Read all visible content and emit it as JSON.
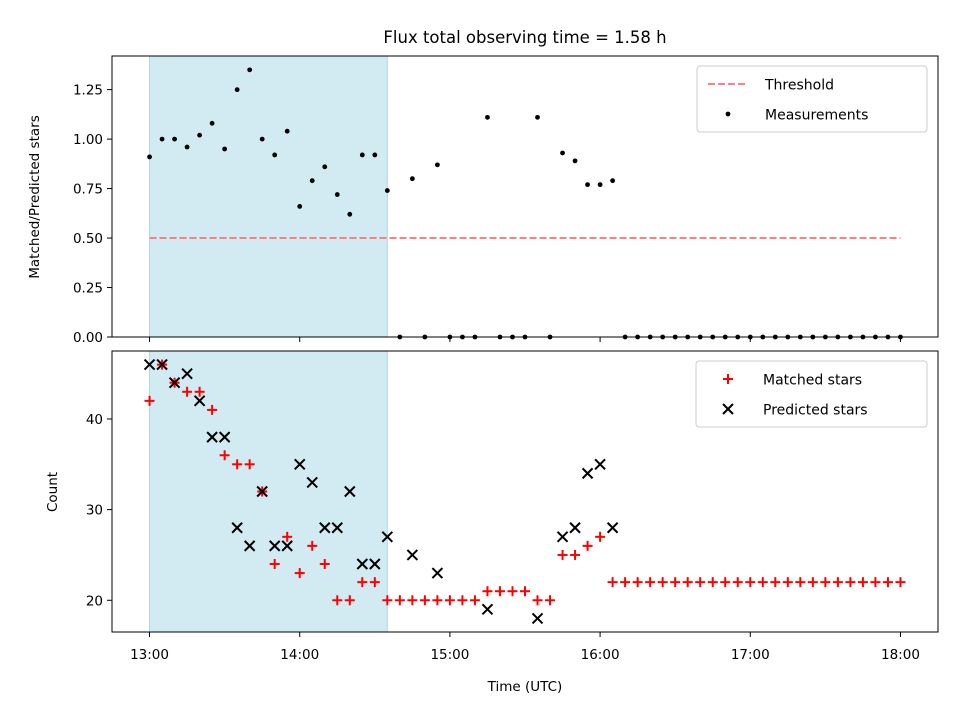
{
  "figure": {
    "title": "Flux total observing time = 1.58 h"
  },
  "colors": {
    "threshold": "#ff7f7f",
    "measurement": "#000000",
    "matched": "#ff0000",
    "predicted": "#000000",
    "shaded_interval": "#add8e6"
  },
  "chart_data": [
    {
      "type": "scatter",
      "title": "Flux total observing time = 1.58 h",
      "xlabel": "",
      "ylabel": "Matched/Predicted stars",
      "xlim": [
        "12:45",
        "18:15"
      ],
      "ylim": [
        0,
        1.42
      ],
      "yticks": [
        0.0,
        0.25,
        0.5,
        0.75,
        1.0,
        1.25
      ],
      "ytick_labels": [
        "0.00",
        "0.25",
        "0.50",
        "0.75",
        "1.00",
        "1.25"
      ],
      "shaded_interval": [
        "13:00",
        "14:35"
      ],
      "legend_position": "top-right",
      "legend": [
        "Threshold",
        "Measurements"
      ],
      "threshold": {
        "name": "Threshold",
        "y": 0.5,
        "x_range": [
          "13:00",
          "18:00"
        ],
        "style": "dashed"
      },
      "series": [
        {
          "name": "Measurements",
          "x": [
            "13:00",
            "13:05",
            "13:10",
            "13:15",
            "13:20",
            "13:25",
            "13:30",
            "13:35",
            "13:40",
            "13:45",
            "13:50",
            "13:55",
            "14:00",
            "14:05",
            "14:10",
            "14:15",
            "14:20",
            "14:25",
            "14:30",
            "14:35",
            "14:40",
            "14:45",
            "14:50",
            "14:55",
            "15:00",
            "15:05",
            "15:10",
            "15:15",
            "15:20",
            "15:25",
            "15:30",
            "15:35",
            "15:40",
            "15:45",
            "15:50",
            "15:55",
            "16:00",
            "16:05",
            "16:10",
            "16:15",
            "16:20",
            "16:25",
            "16:30",
            "16:35",
            "16:40",
            "16:45",
            "16:50",
            "16:55",
            "17:00",
            "17:05",
            "17:10",
            "17:15",
            "17:20",
            "17:25",
            "17:30",
            "17:35",
            "17:40",
            "17:45",
            "17:50",
            "17:55",
            "18:00"
          ],
          "y": [
            0.91,
            1.0,
            1.0,
            0.96,
            1.02,
            1.08,
            0.95,
            1.25,
            1.35,
            1.0,
            0.92,
            1.04,
            0.66,
            0.79,
            0.86,
            0.72,
            0.62,
            0.92,
            0.92,
            0.74,
            0.0,
            0.8,
            0.0,
            0.87,
            0.0,
            0.0,
            0.0,
            1.11,
            0.0,
            0.0,
            0.0,
            1.11,
            0.0,
            0.93,
            0.89,
            0.77,
            0.77,
            0.79,
            0.0,
            0.0,
            0.0,
            0.0,
            0.0,
            0.0,
            0.0,
            0.0,
            0.0,
            0.0,
            0.0,
            0.0,
            0.0,
            0.0,
            0.0,
            0.0,
            0.0,
            0.0,
            0.0,
            0.0,
            0.0,
            0.0,
            0.0
          ]
        }
      ]
    },
    {
      "type": "scatter",
      "title": "",
      "xlabel": "Time (UTC)",
      "ylabel": "Count",
      "xlim": [
        "12:45",
        "18:15"
      ],
      "ylim": [
        16.5,
        47.5
      ],
      "xticks": [
        "13:00",
        "14:00",
        "15:00",
        "16:00",
        "17:00",
        "18:00"
      ],
      "yticks": [
        20,
        30,
        40
      ],
      "shaded_interval": [
        "13:00",
        "14:35"
      ],
      "legend_position": "top-right",
      "legend": [
        "Matched stars",
        "Predicted stars"
      ],
      "series": [
        {
          "name": "Matched stars",
          "marker": "plus",
          "x": [
            "13:00",
            "13:05",
            "13:10",
            "13:15",
            "13:20",
            "13:25",
            "13:30",
            "13:35",
            "13:40",
            "13:45",
            "13:50",
            "13:55",
            "14:00",
            "14:05",
            "14:10",
            "14:15",
            "14:20",
            "14:25",
            "14:30",
            "14:35",
            "14:40",
            "14:45",
            "14:50",
            "14:55",
            "15:00",
            "15:05",
            "15:10",
            "15:15",
            "15:20",
            "15:25",
            "15:30",
            "15:35",
            "15:40",
            "15:45",
            "15:50",
            "15:55",
            "16:00",
            "16:05",
            "16:10",
            "16:15",
            "16:20",
            "16:25",
            "16:30",
            "16:35",
            "16:40",
            "16:45",
            "16:50",
            "16:55",
            "17:00",
            "17:05",
            "17:10",
            "17:15",
            "17:20",
            "17:25",
            "17:30",
            "17:35",
            "17:40",
            "17:45",
            "17:50",
            "17:55",
            "18:00"
          ],
          "y": [
            42,
            46,
            44,
            43,
            43,
            41,
            36,
            35,
            35,
            32,
            24,
            27,
            23,
            26,
            24,
            20,
            20,
            22,
            22,
            20,
            20,
            20,
            20,
            20,
            20,
            20,
            20,
            21,
            21,
            21,
            21,
            20,
            20,
            25,
            25,
            26,
            27,
            22,
            22,
            22,
            22,
            22,
            22,
            22,
            22,
            22,
            22,
            22,
            22,
            22,
            22,
            22,
            22,
            22,
            22,
            22,
            22,
            22,
            22,
            22,
            22
          ]
        },
        {
          "name": "Predicted stars",
          "marker": "x",
          "x": [
            "13:00",
            "13:05",
            "13:10",
            "13:15",
            "13:20",
            "13:25",
            "13:30",
            "13:35",
            "13:40",
            "13:45",
            "13:50",
            "13:55",
            "14:00",
            "14:05",
            "14:10",
            "14:15",
            "14:20",
            "14:25",
            "14:30",
            "14:35",
            "14:45",
            "14:55",
            "15:15",
            "15:35",
            "15:45",
            "15:50",
            "15:55",
            "16:00",
            "16:05"
          ],
          "y": [
            46,
            46,
            44,
            45,
            42,
            38,
            38,
            28,
            26,
            32,
            26,
            26,
            35,
            33,
            28,
            28,
            32,
            24,
            24,
            27,
            25,
            23,
            19,
            18,
            27,
            28,
            34,
            35,
            28
          ]
        }
      ]
    }
  ]
}
